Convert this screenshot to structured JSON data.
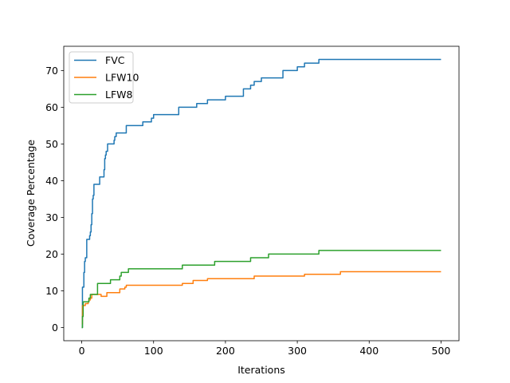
{
  "chart_data": {
    "type": "line",
    "title": "",
    "xlabel": "Iterations",
    "ylabel": "Coverage Percentage",
    "xlim": [
      -25,
      525
    ],
    "ylim": [
      -3.6,
      76.6
    ],
    "xticks": [
      0,
      100,
      200,
      300,
      400,
      500
    ],
    "yticks": [
      0,
      10,
      20,
      30,
      40,
      50,
      60,
      70
    ],
    "grid": false,
    "legend_position": "top-left",
    "series": [
      {
        "name": "FVC",
        "color": "#1f77b4",
        "x": [
          0,
          1,
          2,
          3,
          4,
          5,
          6,
          7,
          10,
          11,
          12,
          13,
          14,
          15,
          16,
          17,
          20,
          24,
          25,
          30,
          31,
          32,
          33,
          34,
          35,
          36,
          40,
          45,
          46,
          47,
          48,
          50,
          52,
          55,
          60,
          62,
          65,
          75,
          77,
          80,
          85,
          90,
          95,
          97,
          100,
          110,
          120,
          130,
          135,
          140,
          145,
          150,
          160,
          170,
          175,
          185,
          200,
          210,
          225,
          230,
          235,
          240,
          245,
          250,
          270,
          280,
          290,
          300,
          310,
          320,
          325,
          330,
          340,
          350,
          400,
          450,
          500
        ],
        "values": [
          0,
          11,
          11,
          15,
          18,
          19,
          19,
          24,
          24,
          25,
          26,
          28,
          31,
          35,
          36,
          39,
          39,
          39,
          41,
          41,
          43,
          46,
          47,
          48,
          48,
          50,
          50,
          51,
          52,
          52,
          53,
          53,
          53,
          53,
          53,
          55,
          55,
          55,
          55,
          55,
          56,
          56,
          56,
          57,
          58,
          58,
          58,
          58,
          60,
          60,
          60,
          60,
          61,
          61,
          62,
          62,
          63,
          63,
          65,
          65,
          66,
          67,
          67,
          68,
          68,
          70,
          70,
          71,
          72,
          72,
          72,
          73,
          73,
          73,
          73,
          73,
          73
        ]
      },
      {
        "name": "LFW10",
        "color": "#ff7f0e",
        "x": [
          0,
          1,
          3,
          5,
          7,
          9,
          10,
          12,
          14,
          16,
          20,
          27,
          35,
          40,
          45,
          50,
          53,
          55,
          60,
          62,
          70,
          80,
          100,
          120,
          135,
          140,
          150,
          155,
          165,
          175,
          190,
          200,
          210,
          220,
          230,
          240,
          250,
          260,
          280,
          290,
          300,
          310,
          320,
          330,
          350,
          360,
          380,
          400,
          450,
          500
        ],
        "values": [
          1,
          6,
          6,
          6.5,
          6.5,
          7,
          7.5,
          8,
          9,
          9,
          9,
          8.5,
          9.5,
          9.5,
          9.5,
          9.5,
          10.5,
          10.5,
          11,
          11.5,
          11.5,
          11.5,
          11.5,
          11.5,
          11.5,
          12,
          12,
          12.8,
          12.8,
          13.3,
          13.3,
          13.3,
          13.3,
          13.3,
          13.3,
          14,
          14,
          14,
          14,
          14,
          14,
          14.5,
          14.5,
          14.5,
          14.5,
          15.2,
          15.2,
          15.2,
          15.2,
          15.2
        ]
      },
      {
        "name": "LFW8",
        "color": "#2ca02c",
        "x": [
          0,
          1,
          2,
          3,
          5,
          7,
          10,
          12,
          14,
          17,
          20,
          22,
          25,
          30,
          35,
          40,
          45,
          50,
          53,
          55,
          60,
          65,
          70,
          100,
          120,
          140,
          150,
          170,
          175,
          185,
          200,
          210,
          220,
          235,
          240,
          250,
          260,
          280,
          300,
          320,
          330,
          340,
          360,
          400,
          450,
          500
        ],
        "values": [
          0,
          3,
          7,
          7,
          7,
          7,
          8,
          9,
          9,
          9,
          9,
          12,
          12,
          12,
          12,
          13,
          13,
          13,
          14,
          15,
          15,
          16,
          16,
          16,
          16,
          17,
          17,
          17,
          17,
          18,
          18,
          18,
          18,
          19,
          19,
          19,
          20,
          20,
          20,
          20,
          21,
          21,
          21,
          21,
          21,
          21
        ]
      }
    ]
  }
}
